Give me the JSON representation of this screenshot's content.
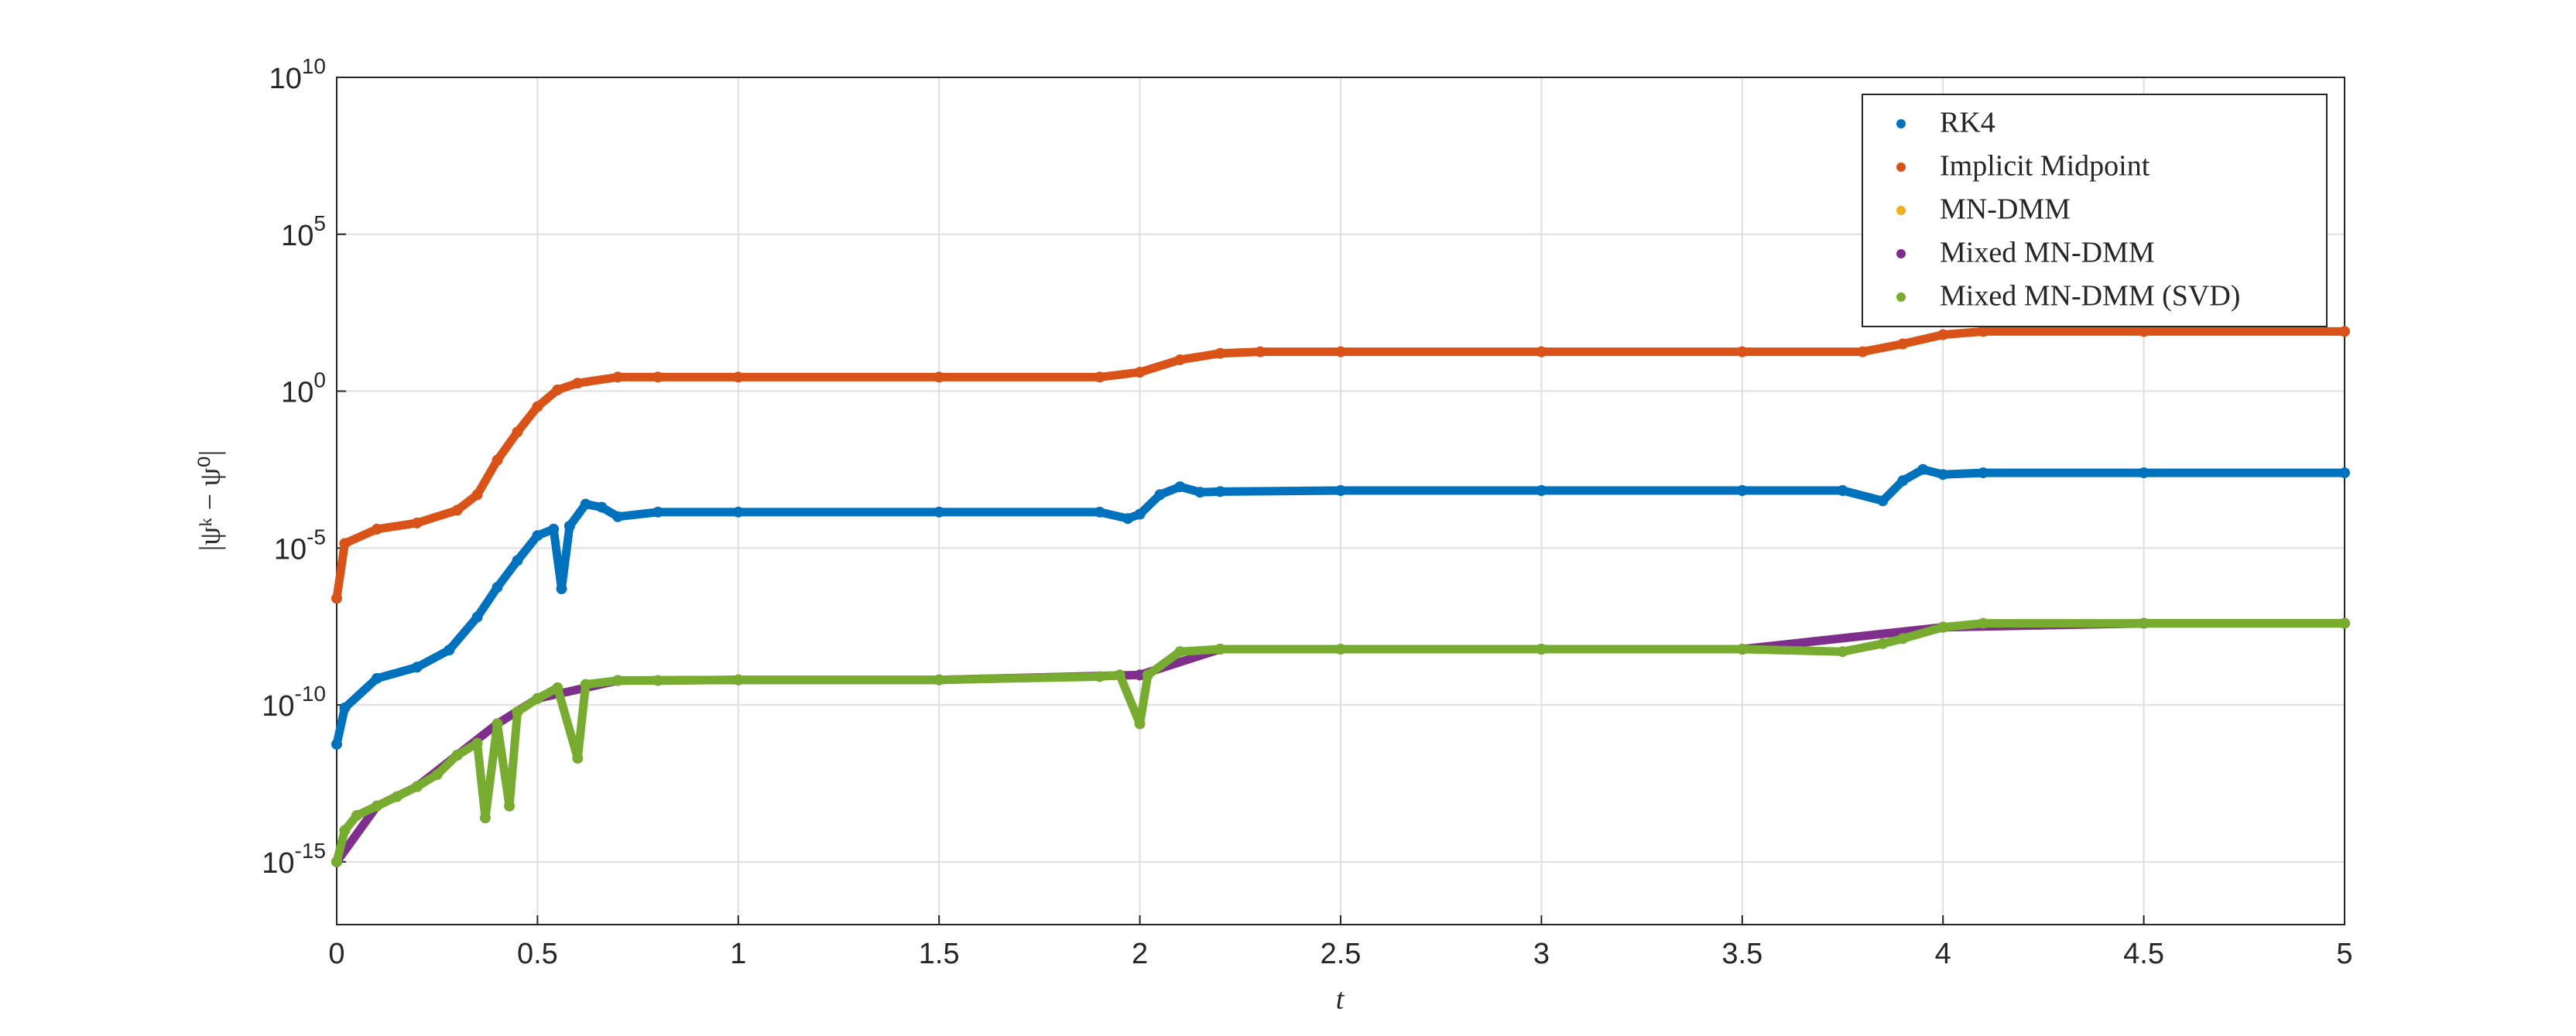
{
  "chart_data": {
    "type": "scatter",
    "xlabel": "t",
    "ylabel": "|ψᵏ − ψ⁰|",
    "xlim": [
      0,
      5
    ],
    "xticks": [
      0,
      0.5,
      1,
      1.5,
      2,
      2.5,
      3,
      3.5,
      4,
      4.5,
      5
    ],
    "ylim": [
      1e-17,
      10000000000.0
    ],
    "yscale": "log",
    "yticks": [
      {
        "value": 1e-15,
        "label": "10^-15"
      },
      {
        "value": 1e-10,
        "label": "10^-10"
      },
      {
        "value": 1e-05,
        "label": "10^-5"
      },
      {
        "value": 1,
        "label": "10^0"
      },
      {
        "value": 100000.0,
        "label": "10^5"
      },
      {
        "value": 10000000000.0,
        "label": "10^10"
      }
    ],
    "grid": true,
    "legend": "northeast",
    "series": [
      {
        "name": "RK4",
        "color": "#0072BD",
        "x": [
          0,
          0.02,
          0.1,
          0.2,
          0.28,
          0.35,
          0.4,
          0.45,
          0.5,
          0.54,
          0.56,
          0.58,
          0.62,
          0.66,
          0.7,
          0.8,
          1,
          1.5,
          1.9,
          1.97,
          2.0,
          2.05,
          2.1,
          2.15,
          2.2,
          2.5,
          3,
          3.5,
          3.75,
          3.85,
          3.9,
          3.95,
          4.0,
          4.1,
          4.5,
          5
        ],
        "values": [
          5.6e-12,
          8e-11,
          7e-10,
          1.6e-09,
          5.6e-09,
          6.3e-08,
          5.6e-07,
          4e-06,
          2.5e-05,
          4e-05,
          5e-07,
          5e-05,
          0.00025,
          0.0002,
          0.0001,
          0.00014,
          0.00014,
          0.00014,
          0.00014,
          8.7e-05,
          0.00012,
          0.0005,
          0.0009,
          0.0006,
          0.00063,
          0.00068,
          0.00068,
          0.00068,
          0.00068,
          0.00032,
          0.0014,
          0.0032,
          0.0022,
          0.0025,
          0.0025,
          0.0025
        ]
      },
      {
        "name": "Implicit Midpoint",
        "color": "#D95319",
        "x": [
          0,
          0.02,
          0.1,
          0.2,
          0.3,
          0.35,
          0.4,
          0.45,
          0.5,
          0.55,
          0.6,
          0.7,
          0.8,
          1,
          1.5,
          1.9,
          2,
          2.1,
          2.2,
          2.3,
          2.5,
          3,
          3.5,
          3.8,
          3.9,
          4,
          4.1,
          4.5,
          5
        ],
        "values": [
          2.5e-07,
          1.4e-05,
          4e-05,
          6.3e-05,
          0.00016,
          0.0005,
          0.0063,
          0.05,
          0.32,
          1.1,
          1.8,
          2.8,
          2.8,
          2.8,
          2.8,
          2.8,
          4,
          10,
          16,
          18,
          18,
          18,
          18,
          18,
          32,
          63,
          80,
          80,
          80
        ]
      },
      {
        "name": "MN-DMM",
        "color": "#EDB120",
        "x": [
          0,
          0.1,
          0.2,
          0.3,
          0.4,
          0.5,
          0.7,
          1,
          1.5,
          2,
          2.2,
          3,
          3.5,
          4,
          4.5,
          5
        ],
        "values": [
          1e-15,
          6e-14,
          2.5e-13,
          2.5e-12,
          2.5e-11,
          1.6e-10,
          6e-10,
          6.3e-10,
          6.3e-10,
          9e-10,
          6e-09,
          6e-09,
          6e-09,
          3e-08,
          4e-08,
          4e-08
        ]
      },
      {
        "name": "Mixed MN-DMM",
        "color": "#7E2F8E",
        "x": [
          0,
          0.1,
          0.2,
          0.3,
          0.4,
          0.5,
          0.7,
          1,
          1.5,
          2,
          2.2,
          3,
          3.5,
          4,
          4.5,
          5
        ],
        "values": [
          1e-15,
          6e-14,
          2.5e-13,
          2.5e-12,
          2.5e-11,
          1.6e-10,
          6e-10,
          6.3e-10,
          6.3e-10,
          9e-10,
          6e-09,
          6e-09,
          6e-09,
          3e-08,
          4e-08,
          4e-08
        ]
      },
      {
        "name": "Mixed MN-DMM (SVD)",
        "color": "#77AC30",
        "x": [
          0,
          0.02,
          0.05,
          0.1,
          0.15,
          0.2,
          0.25,
          0.3,
          0.35,
          0.37,
          0.4,
          0.43,
          0.45,
          0.5,
          0.55,
          0.6,
          0.62,
          0.7,
          0.8,
          1,
          1.5,
          1.9,
          1.95,
          2,
          2.02,
          2.1,
          2.2,
          2.5,
          3,
          3.5,
          3.75,
          3.85,
          3.9,
          4,
          4.1,
          4.5,
          5
        ],
        "values": [
          1e-15,
          1e-14,
          3e-14,
          6e-14,
          1.2e-13,
          2.5e-13,
          6e-13,
          2.5e-12,
          6e-12,
          2.5e-14,
          2.5e-11,
          6e-14,
          6e-11,
          1.6e-10,
          3.5e-10,
          2e-12,
          4.5e-10,
          6e-10,
          6e-10,
          6.3e-10,
          6.3e-10,
          8e-10,
          9e-10,
          2.5e-11,
          9e-10,
          5e-09,
          6e-09,
          6e-09,
          6e-09,
          6e-09,
          5e-09,
          9e-09,
          1.3e-08,
          3e-08,
          4e-08,
          4e-08,
          4e-08
        ]
      }
    ]
  }
}
